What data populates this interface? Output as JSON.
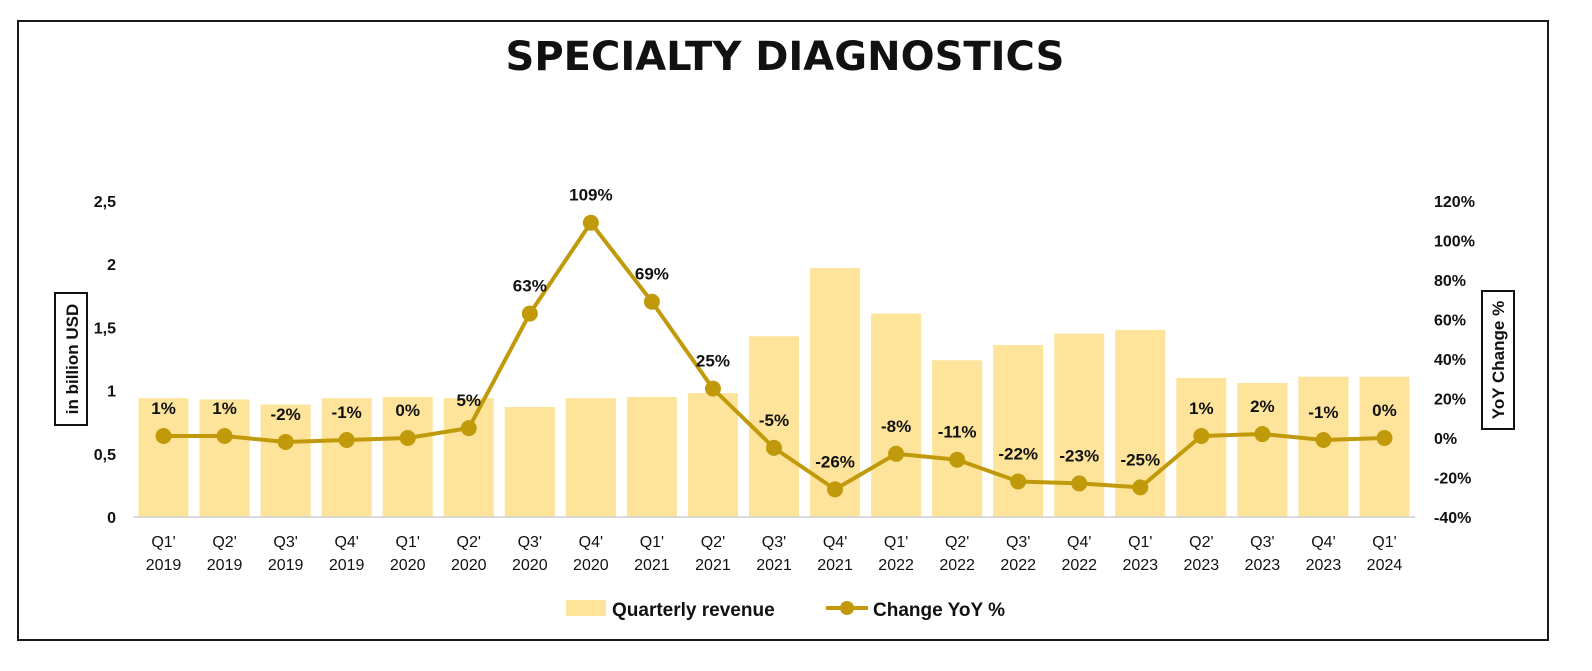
{
  "chart_data": {
    "type": "bar",
    "title": "SPECIALTY DIAGNOSTICS",
    "categories": [
      "Q1' 2019",
      "Q2' 2019",
      "Q3' 2019",
      "Q4' 2019",
      "Q1' 2020",
      "Q2' 2020",
      "Q3' 2020",
      "Q4' 2020",
      "Q1' 2021",
      "Q2' 2021",
      "Q3' 2021",
      "Q4' 2021",
      "Q1' 2022",
      "Q2' 2022",
      "Q3' 2022",
      "Q4' 2022",
      "Q1' 2023",
      "Q2' 2023",
      "Q3' 2023",
      "Q4' 2023",
      "Q1' 2024"
    ],
    "category_lines": [
      [
        "Q1'",
        "2019"
      ],
      [
        "Q2'",
        "2019"
      ],
      [
        "Q3'",
        "2019"
      ],
      [
        "Q4'",
        "2019"
      ],
      [
        "Q1'",
        "2020"
      ],
      [
        "Q2'",
        "2020"
      ],
      [
        "Q3'",
        "2020"
      ],
      [
        "Q4'",
        "2020"
      ],
      [
        "Q1'",
        "2021"
      ],
      [
        "Q2'",
        "2021"
      ],
      [
        "Q3'",
        "2021"
      ],
      [
        "Q4'",
        "2021"
      ],
      [
        "Q1'",
        "2022"
      ],
      [
        "Q2'",
        "2022"
      ],
      [
        "Q3'",
        "2022"
      ],
      [
        "Q4'",
        "2022"
      ],
      [
        "Q1'",
        "2023"
      ],
      [
        "Q2'",
        "2023"
      ],
      [
        "Q3'",
        "2023"
      ],
      [
        "Q4'",
        "2023"
      ],
      [
        "Q1'",
        "2024"
      ]
    ],
    "series": [
      {
        "name": "Quarterly revenue",
        "type": "bar",
        "axis": "left",
        "color": "#fde49a",
        "values": [
          0.94,
          0.93,
          0.89,
          0.94,
          0.95,
          0.94,
          0.87,
          0.94,
          0.95,
          0.98,
          1.43,
          1.97,
          1.61,
          1.24,
          1.36,
          1.45,
          1.48,
          1.1,
          1.06,
          1.11,
          1.11
        ]
      },
      {
        "name": "Change YoY %",
        "type": "line",
        "axis": "right",
        "color": "#c19a0b",
        "values": [
          1,
          1,
          -2,
          -1,
          0,
          5,
          63,
          109,
          69,
          25,
          -5,
          -26,
          -8,
          -11,
          -22,
          -23,
          -25,
          1,
          2,
          -1,
          0
        ],
        "labels": [
          "1%",
          "1%",
          "-2%",
          "-1%",
          "0%",
          "5%",
          "63%",
          "109%",
          "69%",
          "25%",
          "-5%",
          "-26%",
          "-8%",
          "-11%",
          "-22%",
          "-23%",
          "-25%",
          "1%",
          "2%",
          "-1%",
          "0%"
        ]
      }
    ],
    "ylabel": "in billion USD",
    "ylim": [
      0,
      2.5
    ],
    "yticks": [
      "0",
      "0,5",
      "1",
      "1,5",
      "2",
      "2,5"
    ],
    "y2label": "YoY Change %",
    "y2lim": [
      -40,
      120
    ],
    "y2ticks": [
      "-40%",
      "-20%",
      "0%",
      "20%",
      "40%",
      "60%",
      "80%",
      "100%",
      "120%"
    ],
    "grid": false,
    "legend_position": "bottom"
  }
}
